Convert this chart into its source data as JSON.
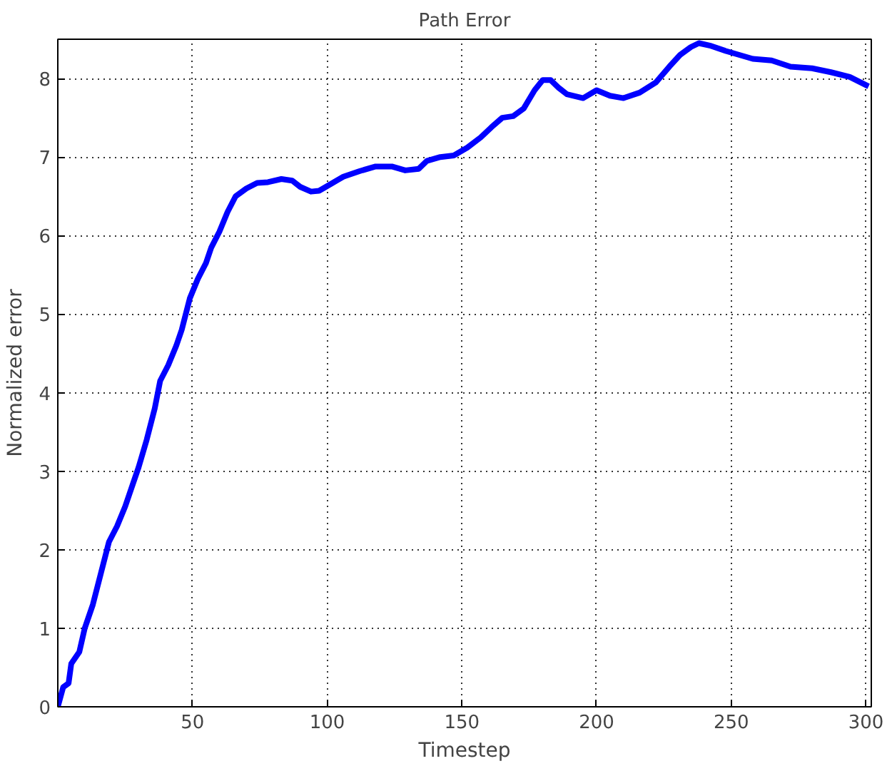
{
  "chart_data": {
    "type": "line",
    "title": "Path Error",
    "xlabel": "Timestep",
    "ylabel": "Normalized error",
    "xlim": [
      0,
      302
    ],
    "xticks": [
      50,
      100,
      150,
      200,
      250,
      300
    ],
    "ylim": [
      0,
      8.5
    ],
    "yticks": [
      0,
      1,
      2,
      3,
      4,
      5,
      6,
      7,
      8
    ],
    "grid": true,
    "line_style": "solid",
    "series": [
      {
        "color": "#0000ff",
        "x": [
          0,
          2,
          4,
          5,
          8,
          10,
          13,
          16,
          19,
          22,
          25,
          28,
          30,
          33,
          36,
          38,
          41,
          44,
          46,
          49,
          52,
          55,
          57,
          60,
          63,
          66,
          70,
          74,
          78,
          83,
          87,
          90,
          94,
          97,
          101,
          106,
          112,
          118,
          124,
          129,
          134,
          137,
          142,
          147,
          152,
          157,
          161,
          165,
          169,
          173,
          177,
          180,
          183,
          186,
          189,
          195,
          200,
          205,
          210,
          216,
          222,
          227,
          231,
          235,
          238,
          242,
          248,
          253,
          258,
          265,
          272,
          280,
          287,
          294,
          301
        ],
        "values": [
          0.0,
          0.25,
          0.3,
          0.55,
          0.7,
          1.0,
          1.3,
          1.7,
          2.1,
          2.3,
          2.55,
          2.85,
          3.05,
          3.4,
          3.8,
          4.15,
          4.35,
          4.6,
          4.8,
          5.2,
          5.45,
          5.65,
          5.85,
          6.05,
          6.3,
          6.5,
          6.6,
          6.67,
          6.68,
          6.72,
          6.7,
          6.62,
          6.56,
          6.57,
          6.65,
          6.75,
          6.82,
          6.88,
          6.88,
          6.83,
          6.85,
          6.95,
          7.0,
          7.02,
          7.12,
          7.25,
          7.38,
          7.5,
          7.52,
          7.62,
          7.85,
          7.98,
          7.98,
          7.88,
          7.8,
          7.75,
          7.85,
          7.78,
          7.75,
          7.82,
          7.95,
          8.15,
          8.3,
          8.4,
          8.45,
          8.42,
          8.35,
          8.3,
          8.25,
          8.23,
          8.15,
          8.13,
          8.08,
          8.02,
          7.9
        ]
      }
    ]
  }
}
